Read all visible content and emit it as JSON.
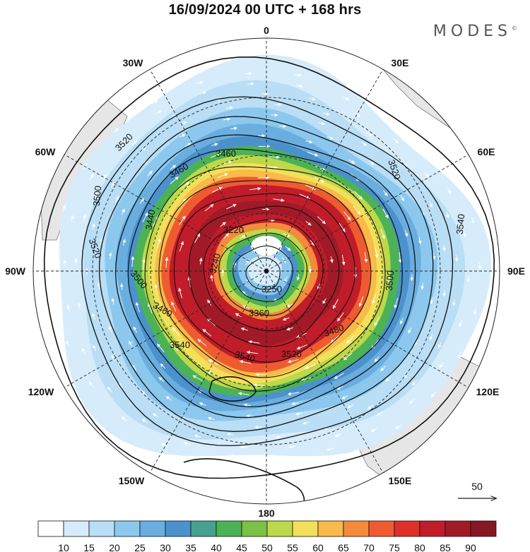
{
  "header": {
    "title": "16/09/2024  00 UTC  + 168 hrs",
    "brand": "MODES",
    "brand_mark": "©"
  },
  "map": {
    "projection": "south polar stereographic",
    "longitude_labels": {
      "top": "0",
      "bottom": "180",
      "left": "90W",
      "right": "90E",
      "upper_left_30": "30W",
      "upper_left_60": "60W",
      "upper_right_30": "30E",
      "upper_right_60": "60E",
      "lower_left_120": "120W",
      "lower_left_150": "150W",
      "lower_right_120": "120E",
      "lower_right_150": "150E"
    },
    "contour_labels": {
      "c3520_ul": "3520",
      "c3500_l": "3500",
      "c3520_l": "3520",
      "c3460_a": "3460",
      "c3460_b": "3460",
      "c3440": "3440",
      "c3520_r": "3520",
      "c3540_r": "3540",
      "c3500_r": "3500",
      "c3220": "3220",
      "c3240": "3240",
      "c3250": "3250",
      "c3360": "3360",
      "c3480": "3480",
      "c3500_bl": "3500",
      "c3460_bl": "3460",
      "c3540_b": "3540",
      "c3540_bb": "3540",
      "c3520_b": "3520"
    },
    "wind_speed_classes": [
      "#ffffff",
      "#d6ecfa",
      "#b9def5",
      "#8cc8ee",
      "#6aaee0",
      "#4b92cc",
      "#46a18e",
      "#4cb256",
      "#7ac145",
      "#bdd84a",
      "#f3e05a",
      "#f8ba48",
      "#f48a3c",
      "#ee5b31",
      "#de3029",
      "#c11c29",
      "#a21a27",
      "#871722"
    ],
    "reference_vector": {
      "label": "50"
    }
  },
  "colorbar": {
    "colors": [
      "#ffffff",
      "#d6ecfa",
      "#b9def5",
      "#8cc8ee",
      "#6aaee0",
      "#4b92cc",
      "#46a18e",
      "#4cb256",
      "#7ac145",
      "#bdd84a",
      "#f3e05a",
      "#f8ba48",
      "#f48a3c",
      "#ee5b31",
      "#de3029",
      "#c11c29",
      "#a21a27",
      "#871722"
    ],
    "ticks": [
      "10",
      "15",
      "20",
      "25",
      "30",
      "35",
      "40",
      "45",
      "50",
      "55",
      "60",
      "65",
      "70",
      "75",
      "80",
      "85",
      "90"
    ]
  }
}
